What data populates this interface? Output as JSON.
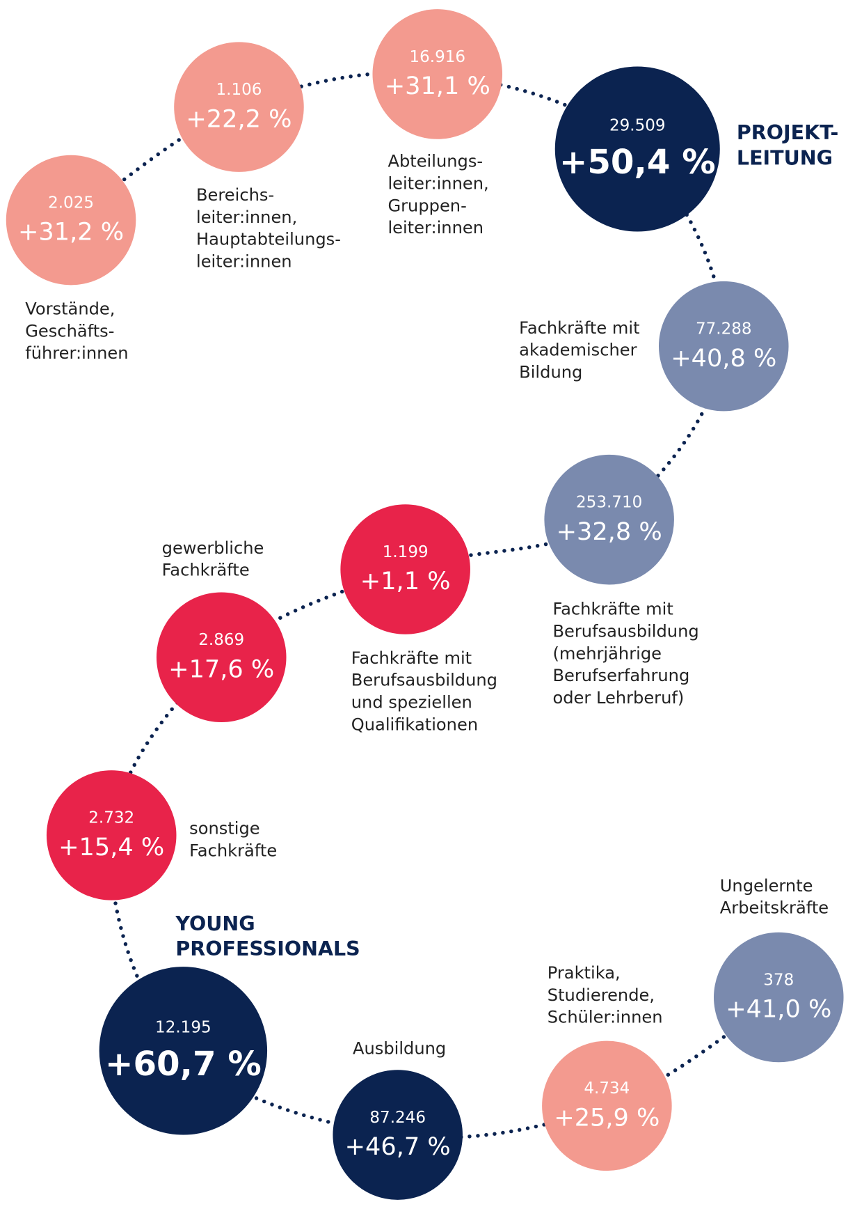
{
  "nodes": [
    {
      "count": "2.025",
      "change": "+31,2 %",
      "label": [
        "Vorstände,",
        "Geschäfts-",
        "führer:innen"
      ]
    },
    {
      "count": "1.106",
      "change": "+22,2 %",
      "label": [
        "Bereichs-",
        "leiter:innen,",
        "Hauptabteilungs-",
        "leiter:innen"
      ]
    },
    {
      "count": "16.916",
      "change": "+31,1 %",
      "label": [
        "Abteilungs-",
        "leiter:innen,",
        "Gruppen-",
        "leiter:innen"
      ]
    },
    {
      "count": "29.509",
      "change": "+50,4 %",
      "label": [
        "PROJEKT-",
        "LEITUNG"
      ]
    },
    {
      "count": "77.288",
      "change": "+40,8 %",
      "label": [
        "Fachkräfte mit",
        "akademischer",
        "Bildung"
      ]
    },
    {
      "count": "253.710",
      "change": "+32,8 %",
      "label": [
        "Fachkräfte mit",
        "Berufsausbildung",
        "(mehrjährige",
        "Berufserfahrung",
        "oder Lehrberuf)"
      ]
    },
    {
      "count": "1.199",
      "change": "+1,1 %",
      "label": [
        "Fachkräfte mit",
        "Berufsausbildung",
        "und speziellen",
        "Qualifikationen"
      ]
    },
    {
      "count": "2.869",
      "change": "+17,6 %",
      "label": [
        "gewerbliche",
        "Fachkräfte"
      ]
    },
    {
      "count": "2.732",
      "change": "+15,4 %",
      "label": [
        "sonstige",
        "Fachkräfte"
      ]
    },
    {
      "count": "12.195",
      "change": "+60,7 %",
      "label": [
        "YOUNG",
        "PROFESSIONALS"
      ]
    },
    {
      "count": "87.246",
      "change": "+46,7 %",
      "label": [
        "Ausbildung"
      ]
    },
    {
      "count": "4.734",
      "change": "+25,9 %",
      "label": [
        "Praktika,",
        "Studierende,",
        "Schüler:innen"
      ]
    },
    {
      "count": "378",
      "change": "+41,0 %",
      "label": [
        "Ungelernte",
        "Arbeitskräfte"
      ]
    }
  ]
}
